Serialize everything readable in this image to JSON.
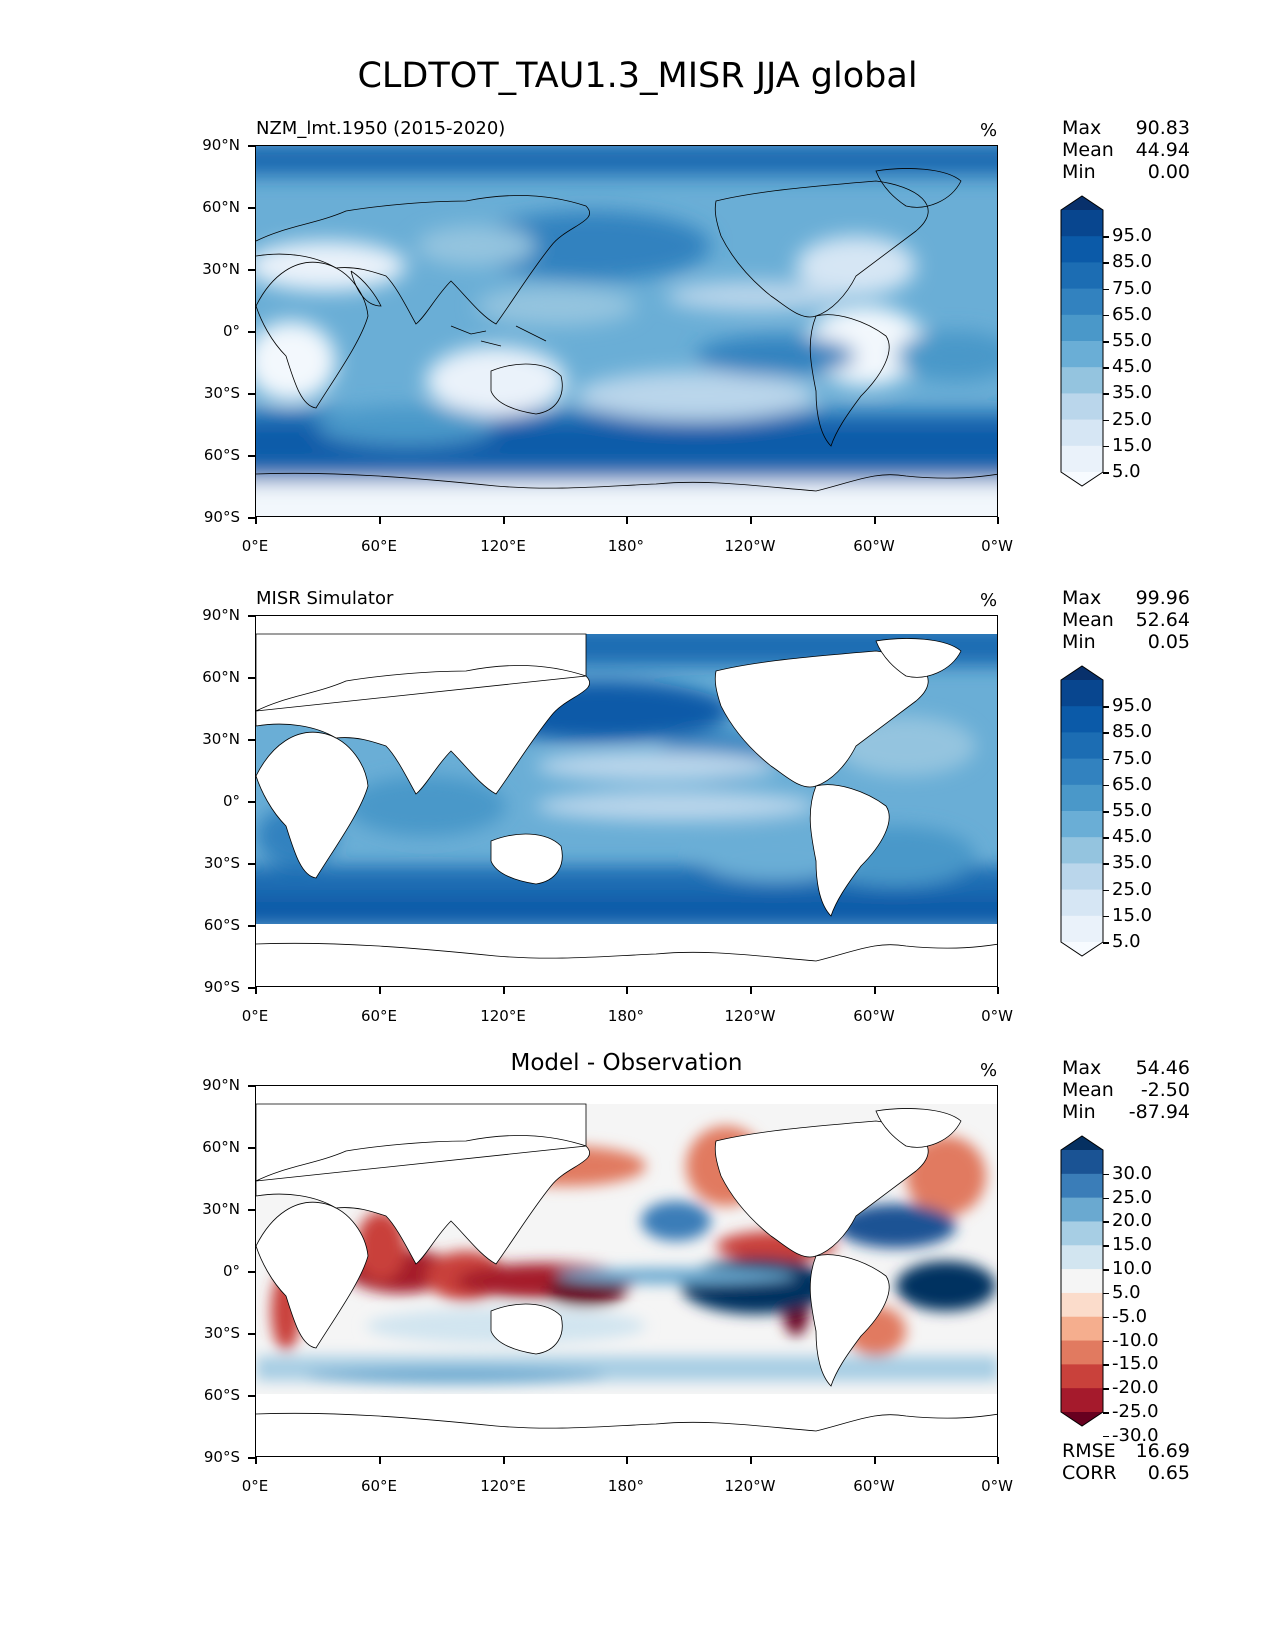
{
  "title": "CLDTOT_TAU1.3_MISR JJA global",
  "x_ticks": [
    "0°E",
    "60°E",
    "120°E",
    "180°",
    "120°W",
    "60°W",
    "0°W"
  ],
  "y_ticks": [
    "90°N",
    "60°N",
    "30°N",
    "0°",
    "30°S",
    "60°S",
    "90°S"
  ],
  "panels": [
    {
      "left_title": "NZM_lmt.1950 (2015-2020)",
      "center_title": "",
      "units": "%",
      "stats": [
        {
          "label": "Max",
          "value": "90.83"
        },
        {
          "label": "Mean",
          "value": "44.94"
        },
        {
          "label": "Min",
          "value": "0.00"
        }
      ],
      "colorbar_labels": [
        "95.0",
        "85.0",
        "75.0",
        "65.0",
        "55.0",
        "45.0",
        "35.0",
        "25.0",
        "15.0",
        "5.0"
      ],
      "colorbar_colors": [
        "#08306b",
        "#08468f",
        "#0b5aa8",
        "#1c6db3",
        "#3282bf",
        "#4a98c9",
        "#6aaed6",
        "#94c4df",
        "#bad6eb",
        "#d6e6f4",
        "#eaf2fa",
        "#f7fbff"
      ],
      "extra_stats": []
    },
    {
      "left_title": "MISR Simulator",
      "center_title": "",
      "units": "%",
      "stats": [
        {
          "label": "Max",
          "value": "99.96"
        },
        {
          "label": "Mean",
          "value": "52.64"
        },
        {
          "label": "Min",
          "value": "0.05"
        }
      ],
      "colorbar_labels": [
        "95.0",
        "85.0",
        "75.0",
        "65.0",
        "55.0",
        "45.0",
        "35.0",
        "25.0",
        "15.0",
        "5.0"
      ],
      "colorbar_colors": [
        "#08306b",
        "#08468f",
        "#0b5aa8",
        "#1c6db3",
        "#3282bf",
        "#4a98c9",
        "#6aaed6",
        "#94c4df",
        "#bad6eb",
        "#d6e6f4",
        "#eaf2fa",
        "#f7fbff"
      ],
      "extra_stats": []
    },
    {
      "left_title": "",
      "center_title": "Model - Observation",
      "units": "%",
      "stats": [
        {
          "label": "Max",
          "value": "54.46"
        },
        {
          "label": "Mean",
          "value": "-2.50"
        },
        {
          "label": "Min",
          "value": "-87.94"
        }
      ],
      "colorbar_labels": [
        "30.0",
        "25.0",
        "20.0",
        "15.0",
        "10.0",
        "5.0",
        "-5.0",
        "-10.0",
        "-15.0",
        "-20.0",
        "-25.0",
        "-30.0"
      ],
      "colorbar_colors": [
        "#053061",
        "#1a5394",
        "#3a7db8",
        "#6aa9d0",
        "#a7cee4",
        "#d2e5f0",
        "#f5f5f5",
        "#fbdccb",
        "#f5ae8e",
        "#e17a60",
        "#c9413b",
        "#a51a2c",
        "#67001f"
      ],
      "extra_stats": [
        {
          "label": "RMSE",
          "value": "16.69"
        },
        {
          "label": "CORR",
          "value": "0.65"
        }
      ]
    }
  ],
  "chart_data": {
    "type": "heatmap",
    "title": "CLDTOT_TAU1.3_MISR JJA global",
    "projection": "global lat-lon, central longitude 180",
    "x_range": [
      0,
      360
    ],
    "y_range": [
      -90,
      90
    ],
    "maps": [
      {
        "name": "NZM_lmt.1950 (2015-2020)",
        "units": "%",
        "max": 90.83,
        "mean": 44.94,
        "min": 0.0,
        "levels": [
          5,
          15,
          25,
          35,
          45,
          55,
          65,
          75,
          85,
          95
        ]
      },
      {
        "name": "MISR Simulator",
        "units": "%",
        "max": 99.96,
        "mean": 52.64,
        "min": 0.05,
        "levels": [
          5,
          15,
          25,
          35,
          45,
          55,
          65,
          75,
          85,
          95
        ]
      },
      {
        "name": "Model - Observation",
        "units": "%",
        "max": 54.46,
        "mean": -2.5,
        "min": -87.94,
        "rmse": 16.69,
        "corr": 0.65,
        "levels": [
          -30,
          -25,
          -20,
          -15,
          -10,
          -5,
          5,
          10,
          15,
          20,
          25,
          30
        ]
      }
    ]
  }
}
